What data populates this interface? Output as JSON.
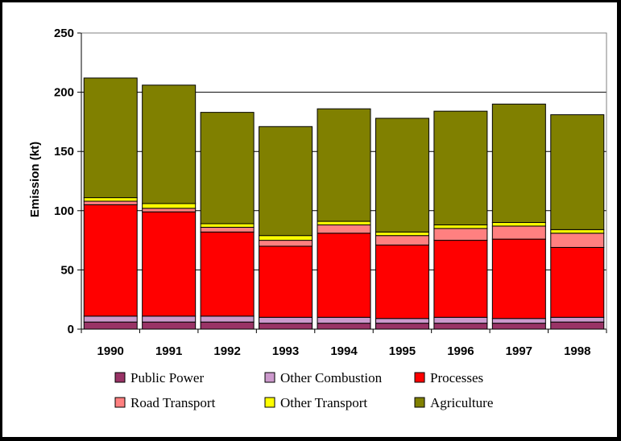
{
  "chart_data": {
    "type": "bar",
    "stacked": true,
    "title": "",
    "xlabel": "",
    "ylabel": "Emission (kt)",
    "ylim": [
      0,
      250
    ],
    "yticks": [
      0,
      50,
      100,
      150,
      200,
      250
    ],
    "grid": "horizontal",
    "legend_position": "bottom",
    "categories": [
      "1990",
      "1991",
      "1992",
      "1993",
      "1994",
      "1995",
      "1996",
      "1997",
      "1998"
    ],
    "series": [
      {
        "name": "Public Power",
        "color": "#993366",
        "values": [
          6,
          6,
          6,
          5,
          5,
          5,
          5,
          5,
          6
        ]
      },
      {
        "name": "Other Combustion",
        "color": "#CC99CC",
        "values": [
          5,
          5,
          5,
          5,
          5,
          4,
          5,
          4,
          4
        ]
      },
      {
        "name": "Processes",
        "color": "#FF0000",
        "values": [
          94,
          88,
          71,
          60,
          71,
          62,
          65,
          67,
          59
        ]
      },
      {
        "name": "Road Transport",
        "color": "#FF8080",
        "values": [
          3,
          3,
          4,
          5,
          7,
          8,
          10,
          11,
          12
        ]
      },
      {
        "name": "Other Transport",
        "color": "#FFFF00",
        "values": [
          3,
          4,
          3,
          4,
          3,
          3,
          3,
          3,
          3
        ]
      },
      {
        "name": "Agriculture",
        "color": "#808000",
        "values": [
          101,
          100,
          94,
          92,
          95,
          96,
          96,
          100,
          97
        ]
      }
    ]
  }
}
